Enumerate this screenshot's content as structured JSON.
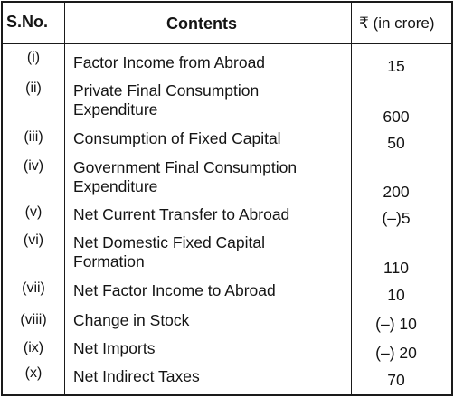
{
  "header": {
    "sno": "S.No.",
    "contents": "Contents",
    "unit": "₹ (in crore)"
  },
  "rows": [
    {
      "sno": "(i)",
      "content": "Factor Income from Abroad",
      "value": "15"
    },
    {
      "sno": "(ii)",
      "content": "Private Final Consumption Expenditure",
      "value": "600"
    },
    {
      "sno": "(iii)",
      "content": "Consumption of Fixed Capital",
      "value": "50"
    },
    {
      "sno": "(iv)",
      "content": "Government Final Consumption Expenditure",
      "value": "200"
    },
    {
      "sno": "(v)",
      "content": "Net Current Transfer to Abroad",
      "value": "(–)5"
    },
    {
      "sno": "(vi)",
      "content": "Net Domestic Fixed Capital Formation",
      "value": "110"
    },
    {
      "sno": "(vii)",
      "content": "Net Factor Income to Abroad",
      "value": "10"
    },
    {
      "sno": "(viii)",
      "content": "Change in Stock",
      "value": "(–) 10"
    },
    {
      "sno": "(ix)",
      "content": "Net Imports",
      "value": "(–) 20"
    },
    {
      "sno": "(x)",
      "content": "Net Indirect Taxes",
      "value": "70"
    }
  ]
}
